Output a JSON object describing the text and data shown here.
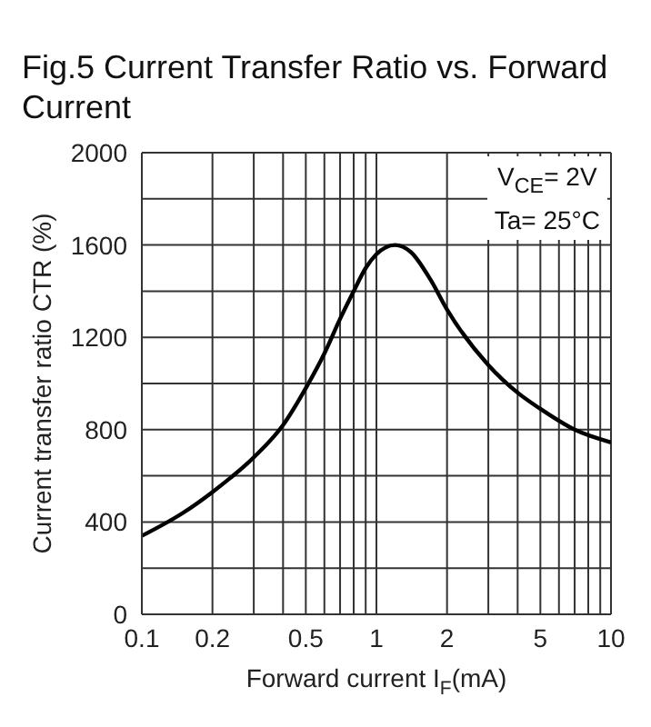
{
  "chart_data": {
    "type": "line",
    "title": "Fig.5 Current Transfer Ratio vs. Forward Current",
    "xlabel": "Forward current I$_{F}$(mA)",
    "ylabel": "Current transfer ratio CTR (%)",
    "annotations": [
      "V$_{CE}$= 2V",
      "Ta= 25°C"
    ],
    "x": [
      0.1,
      0.15,
      0.2,
      0.3,
      0.4,
      0.5,
      0.6,
      0.7,
      0.8,
      0.9,
      1,
      1.2,
      1.4,
      1.7,
      2,
      3,
      4,
      5,
      7,
      10
    ],
    "series": [
      {
        "color": "#000000",
        "values": [
          340,
          440,
          530,
          680,
          820,
          980,
          1130,
          1280,
          1400,
          1500,
          1560,
          1600,
          1570,
          1450,
          1320,
          1080,
          960,
          890,
          800,
          745
        ]
      }
    ],
    "xlim": [
      0.1,
      10
    ],
    "xticks": [
      0.1,
      0.2,
      {
        "value": 0.3,
        "label": null
      },
      {
        "value": 0.4,
        "label": null
      },
      0.5,
      {
        "value": 0.6,
        "label": null
      },
      {
        "value": 0.7,
        "label": null
      },
      {
        "value": 0.8,
        "label": null
      },
      {
        "value": 0.9,
        "label": null
      },
      1,
      2,
      {
        "value": 3,
        "label": null
      },
      {
        "value": 4,
        "label": null
      },
      5,
      {
        "value": 6,
        "label": null
      },
      {
        "value": 7,
        "label": null
      },
      {
        "value": 8,
        "label": null
      },
      {
        "value": 9,
        "label": null
      },
      10
    ],
    "ylim": [
      0,
      2000
    ],
    "yticks": [
      0,
      {
        "value": 200,
        "label": null
      },
      400,
      {
        "value": 600,
        "label": null
      },
      800,
      {
        "value": 1000,
        "label": null
      },
      1200,
      {
        "value": 1400,
        "label": null
      },
      1600,
      {
        "value": 1800,
        "label": null
      },
      2000
    ],
    "log": "x",
    "grid": true,
    "legend": false,
    "marker": "none",
    "line_style": "solid"
  }
}
